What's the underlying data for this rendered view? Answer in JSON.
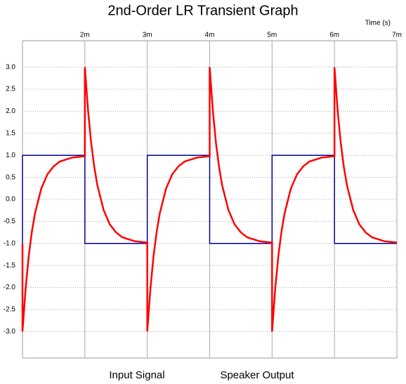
{
  "chart_data": {
    "type": "line",
    "title": "2nd-Order LR Transient Graph",
    "x_label": "Time  (s)",
    "x": [
      0.001,
      0.001,
      0.00105,
      0.0011,
      0.00115,
      0.0012,
      0.0013,
      0.0014,
      0.0015,
      0.0016,
      0.0018,
      0.002,
      0.002,
      0.00205,
      0.0021,
      0.00215,
      0.0022,
      0.0023,
      0.0024,
      0.0025,
      0.0026,
      0.0028,
      0.003,
      0.003,
      0.00305,
      0.0031,
      0.00315,
      0.0032,
      0.0033,
      0.0034,
      0.0035,
      0.0036,
      0.0038,
      0.004,
      0.004,
      0.00405,
      0.0041,
      0.00415,
      0.0042,
      0.0043,
      0.0044,
      0.0045,
      0.0046,
      0.0048,
      0.005,
      0.005,
      0.00505,
      0.0051,
      0.00515,
      0.0052,
      0.0053,
      0.0054,
      0.0055,
      0.0056,
      0.0058,
      0.006,
      0.006,
      0.00605,
      0.0061,
      0.00615,
      0.0062,
      0.0063,
      0.0064,
      0.0065,
      0.0066,
      0.0068,
      0.007
    ],
    "series": [
      {
        "name": "Input Signal",
        "color": "#000099",
        "values": [
          -1,
          1,
          1,
          1,
          1,
          1,
          1,
          1,
          1,
          1,
          1,
          1,
          -1,
          -1,
          -1,
          -1,
          -1,
          -1,
          -1,
          -1,
          -1,
          -1,
          -1,
          1,
          1,
          1,
          1,
          1,
          1,
          1,
          1,
          1,
          1,
          1,
          -1,
          -1,
          -1,
          -1,
          -1,
          -1,
          -1,
          -1,
          -1,
          -1,
          -1,
          1,
          1,
          1,
          1,
          1,
          1,
          1,
          1,
          1,
          1,
          1,
          -1,
          -1,
          -1,
          -1,
          -1,
          -1,
          -1,
          -1,
          -1,
          -1,
          -1
        ]
      },
      {
        "name": "Speaker Output",
        "color": "#ff0000",
        "values": [
          -1,
          -3,
          -2.03,
          -1.29,
          -0.74,
          -0.32,
          0.24,
          0.57,
          0.75,
          0.86,
          0.95,
          0.98,
          3,
          2.03,
          1.29,
          0.74,
          0.32,
          -0.24,
          -0.57,
          -0.75,
          -0.86,
          -0.95,
          -0.98,
          -3,
          -2.03,
          -1.29,
          -0.74,
          -0.32,
          0.24,
          0.57,
          0.75,
          0.86,
          0.95,
          0.98,
          3,
          2.03,
          1.29,
          0.74,
          0.32,
          -0.24,
          -0.57,
          -0.75,
          -0.86,
          -0.95,
          -0.98,
          -3,
          -2.03,
          -1.29,
          -0.74,
          -0.32,
          0.24,
          0.57,
          0.75,
          0.86,
          0.95,
          0.98,
          3,
          2.03,
          1.29,
          0.74,
          0.32,
          -0.24,
          -0.57,
          -0.75,
          -0.86,
          -0.95,
          -0.98
        ]
      }
    ],
    "xlim": [
      0.001,
      0.007
    ],
    "xticks": [
      {
        "value": 0.002,
        "label": "2m"
      },
      {
        "value": 0.003,
        "label": "3m"
      },
      {
        "value": 0.004,
        "label": "4m"
      },
      {
        "value": 0.005,
        "label": "5m"
      },
      {
        "value": 0.006,
        "label": "6m"
      },
      {
        "value": 0.007,
        "label": "7m"
      }
    ],
    "ylim": [
      -3.6,
      3.6
    ],
    "yticks": [
      {
        "value": 3,
        "label": "3.0"
      },
      2.5,
      {
        "value": 2,
        "label": "2.0"
      },
      1.5,
      {
        "value": 1,
        "label": "1.0"
      },
      0.5,
      {
        "value": 0,
        "label": "0.0"
      },
      -0.5,
      {
        "value": -1,
        "label": "-1.0"
      },
      -1.5,
      {
        "value": -2,
        "label": "-2.0"
      },
      -2.5,
      {
        "value": -3,
        "label": "-3.0"
      }
    ],
    "grid": true
  }
}
